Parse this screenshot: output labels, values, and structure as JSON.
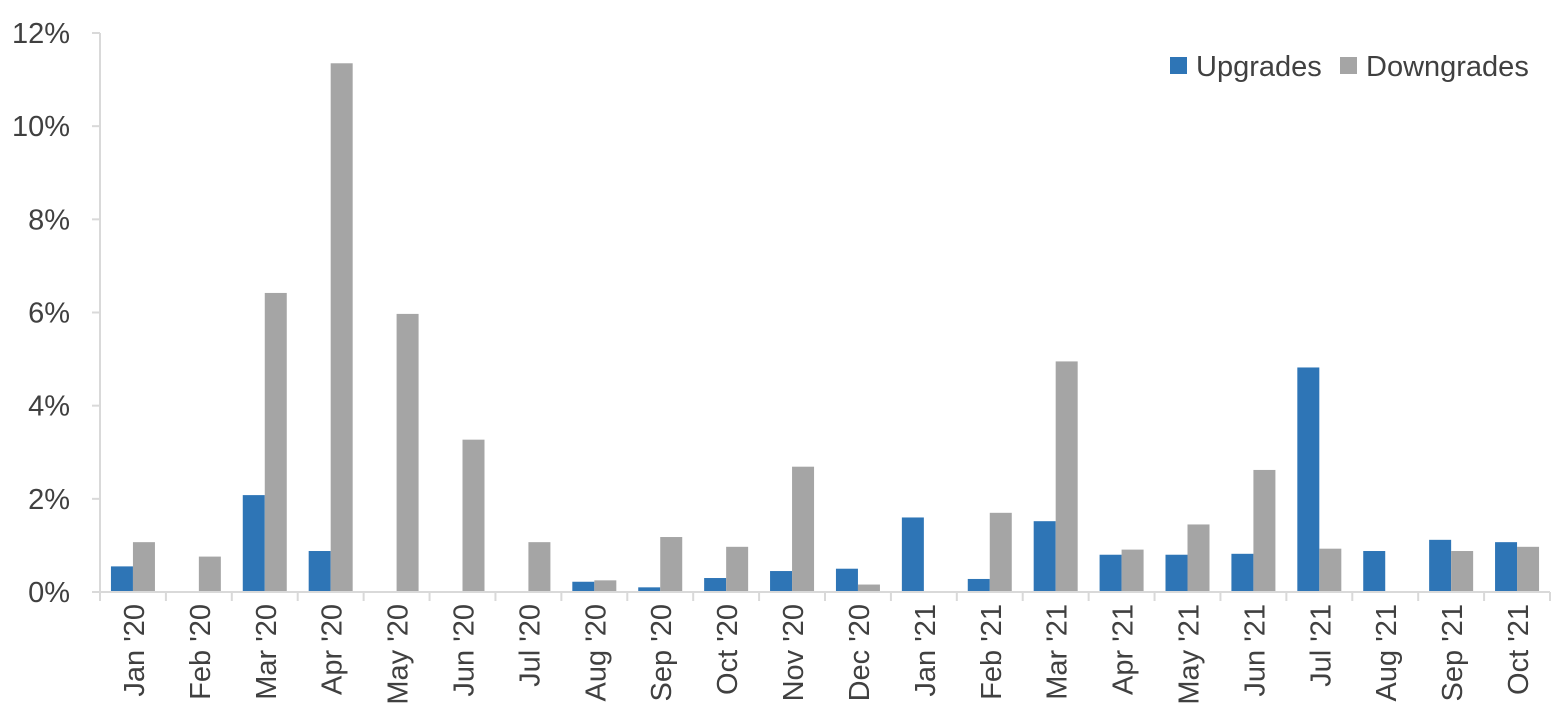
{
  "chart_data": {
    "type": "bar",
    "title": "",
    "xlabel": "",
    "ylabel": "",
    "ylim": [
      0,
      12
    ],
    "y_ticks": [
      0,
      2,
      4,
      6,
      8,
      10,
      12
    ],
    "y_tick_labels": [
      "0%",
      "2%",
      "4%",
      "6%",
      "8%",
      "10%",
      "12%"
    ],
    "categories": [
      "Jan '20",
      "Feb '20",
      "Mar '20",
      "Apr '20",
      "May '20",
      "Jun '20",
      "Jul '20",
      "Aug '20",
      "Sep '20",
      "Oct '20",
      "Nov '20",
      "Dec '20",
      "Jan '21",
      "Feb '21",
      "Mar '21",
      "Apr '21",
      "May '21",
      "Jun '21",
      "Jul '21",
      "Aug '21",
      "Sep '21",
      "Oct '21"
    ],
    "series": [
      {
        "name": "Upgrades",
        "color": "#2E75B6",
        "values": [
          0.55,
          0,
          2.08,
          0.88,
          0,
          0,
          0,
          0.22,
          0.1,
          0.3,
          0.45,
          0.5,
          1.6,
          0.28,
          1.52,
          0.8,
          0.8,
          0.82,
          4.82,
          0.88,
          1.12,
          1.07
        ]
      },
      {
        "name": "Downgrades",
        "color": "#A5A5A5",
        "values": [
          1.07,
          0.76,
          6.42,
          11.35,
          5.97,
          3.27,
          1.07,
          0.25,
          1.18,
          0.97,
          2.69,
          0.16,
          0,
          1.7,
          4.95,
          0.91,
          1.45,
          2.62,
          0.93,
          0,
          0.88,
          0.97
        ]
      }
    ],
    "grid": false,
    "legend_position": "top-right",
    "axis_color": "#D9D9D9",
    "text_color": "#404040"
  }
}
